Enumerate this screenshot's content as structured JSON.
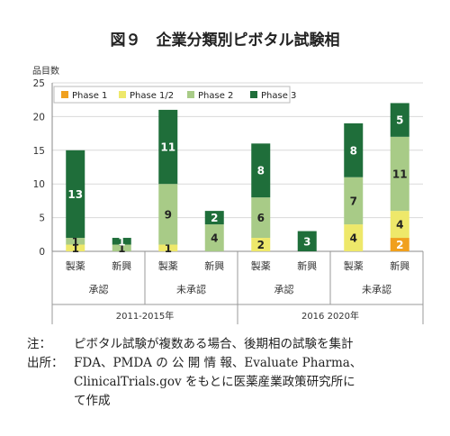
{
  "chart_data": {
    "type": "stacked_bar",
    "title": "図９　企業分類別ピボタル試験相",
    "ylabel": "品目数",
    "ylim": [
      0,
      25
    ],
    "yticks": [
      0,
      5,
      10,
      15,
      20,
      25
    ],
    "legend_position": "top-left",
    "categories": [
      "製薬",
      "新興",
      "製薬",
      "新興",
      "製薬",
      "新興",
      "製薬",
      "新興"
    ],
    "group_labels": [
      {
        "label": "承認",
        "span": [
          0,
          1
        ]
      },
      {
        "label": "未承認",
        "span": [
          2,
          3
        ]
      },
      {
        "label": "承認",
        "span": [
          4,
          5
        ]
      },
      {
        "label": "未承認",
        "span": [
          6,
          7
        ]
      }
    ],
    "period_labels": [
      {
        "label": "2011-2015年",
        "span": [
          0,
          3
        ]
      },
      {
        "label": "2016 2020年",
        "span": [
          4,
          7
        ]
      }
    ],
    "series": [
      {
        "name": "Phase 1",
        "color": "#f0a01e",
        "values": [
          0,
          0,
          0,
          0,
          0,
          0,
          0,
          2
        ]
      },
      {
        "name": "Phase 1/2",
        "color": "#eee86a",
        "values": [
          1,
          0,
          1,
          0,
          2,
          0,
          4,
          4
        ]
      },
      {
        "name": "Phase 2",
        "color": "#a8cb87",
        "values": [
          1,
          1,
          9,
          4,
          6,
          0,
          7,
          11
        ]
      },
      {
        "name": "Phase 3",
        "color": "#1f6e3a",
        "values": [
          13,
          1,
          11,
          2,
          8,
          3,
          8,
          5
        ]
      }
    ]
  },
  "notes": {
    "note_label": "注：",
    "note_text": "ピボタル試験が複数ある場合、後期相の試験を集計",
    "source_label": "出所：",
    "source_line1": "FDA、PMDA の 公 開 情 報、Evaluate Pharma、",
    "source_line2": "ClinicalTrials.gov をもとに医薬産業政策研究所に",
    "source_line3": "て作成"
  }
}
